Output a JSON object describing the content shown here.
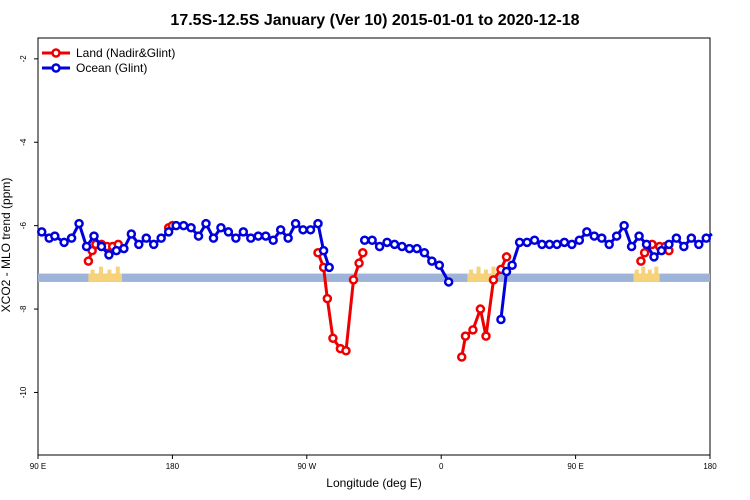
{
  "chart_data": {
    "type": "line",
    "title": "17.5S-12.5S January (Ver 10)   2015-01-01 to 2020-12-18",
    "xlabel": "Longitude (deg E)",
    "ylabel": "XCO2 - MLO trend (ppm)",
    "xlim": [
      90,
      450
    ],
    "ylim": [
      -11.5,
      -1.5
    ],
    "x_ticks": [
      {
        "value": 90,
        "label": "90 E"
      },
      {
        "value": 162,
        "label": "180"
      },
      {
        "value": 234,
        "label": "90 W"
      },
      {
        "value": 306,
        "label": "0"
      },
      {
        "value": 378,
        "label": "90 E"
      },
      {
        "value": 450,
        "label": "180"
      }
    ],
    "y_ticks": [
      {
        "value": -2,
        "label": "-2"
      },
      {
        "value": -4,
        "label": "-4"
      },
      {
        "value": -6,
        "label": "-6"
      },
      {
        "value": -8,
        "label": "-8"
      },
      {
        "value": -10,
        "label": "-10"
      }
    ],
    "grid": false,
    "legend_position": "top-left",
    "band": {
      "y_min": -7.35,
      "y_max": -7.15,
      "color": "#9db3d8",
      "land_color": "#f6d27a"
    },
    "land_band_spans": [
      [
        117,
        135
      ],
      [
        320,
        336
      ],
      [
        409,
        423
      ]
    ],
    "series": [
      {
        "name": "Land (Nadir&Glint)",
        "color": "#ee0000",
        "segments": [
          [
            [
              117,
              -6.85
            ],
            [
              119,
              -6.6
            ],
            [
              121,
              -6.45
            ],
            [
              124,
              -6.45
            ],
            [
              127,
              -6.5
            ],
            [
              130,
              -6.5
            ],
            [
              133,
              -6.45
            ]
          ],
          [
            [
              160,
              -6.05
            ],
            [
              162,
              -6.0
            ]
          ],
          [
            [
              240,
              -6.65
            ],
            [
              243,
              -7.0
            ],
            [
              245,
              -7.75
            ],
            [
              248,
              -8.7
            ],
            [
              252,
              -8.95
            ],
            [
              255,
              -9.0
            ],
            [
              259,
              -7.3
            ],
            [
              262,
              -6.9
            ],
            [
              264,
              -6.65
            ]
          ],
          [
            [
              317,
              -9.15
            ],
            [
              319,
              -8.65
            ],
            [
              323,
              -8.5
            ],
            [
              327,
              -8.0
            ],
            [
              330,
              -8.65
            ],
            [
              334,
              -7.3
            ],
            [
              338,
              -7.05
            ],
            [
              341,
              -6.75
            ]
          ],
          [
            [
              413,
              -6.85
            ],
            [
              415,
              -6.65
            ],
            [
              419,
              -6.45
            ],
            [
              423,
              -6.5
            ],
            [
              426,
              -6.5
            ],
            [
              428,
              -6.6
            ]
          ]
        ]
      },
      {
        "name": "Ocean (Glint)",
        "color": "#0000dd",
        "segments": [
          [
            [
              92,
              -6.15
            ],
            [
              96,
              -6.3
            ],
            [
              99,
              -6.25
            ],
            [
              104,
              -6.4
            ],
            [
              108,
              -6.3
            ],
            [
              112,
              -5.95
            ],
            [
              116,
              -6.5
            ],
            [
              120,
              -6.25
            ],
            [
              124,
              -6.5
            ],
            [
              128,
              -6.7
            ],
            [
              132,
              -6.6
            ],
            [
              136,
              -6.55
            ],
            [
              140,
              -6.2
            ],
            [
              144,
              -6.45
            ],
            [
              148,
              -6.3
            ],
            [
              152,
              -6.45
            ],
            [
              156,
              -6.3
            ],
            [
              160,
              -6.15
            ],
            [
              164,
              -6.0
            ],
            [
              168,
              -6.0
            ],
            [
              172,
              -6.05
            ],
            [
              176,
              -6.25
            ],
            [
              180,
              -5.95
            ],
            [
              184,
              -6.3
            ],
            [
              188,
              -6.05
            ],
            [
              192,
              -6.15
            ],
            [
              196,
              -6.3
            ],
            [
              200,
              -6.15
            ],
            [
              204,
              -6.3
            ],
            [
              208,
              -6.25
            ],
            [
              212,
              -6.25
            ],
            [
              216,
              -6.35
            ],
            [
              220,
              -6.1
            ],
            [
              224,
              -6.3
            ],
            [
              228,
              -5.95
            ],
            [
              232,
              -6.1
            ],
            [
              236,
              -6.1
            ],
            [
              240,
              -5.95
            ],
            [
              243,
              -6.6
            ],
            [
              246,
              -7.0
            ]
          ],
          [
            [
              265,
              -6.35
            ],
            [
              269,
              -6.35
            ],
            [
              273,
              -6.5
            ],
            [
              277,
              -6.4
            ],
            [
              281,
              -6.45
            ],
            [
              285,
              -6.5
            ],
            [
              289,
              -6.55
            ],
            [
              293,
              -6.55
            ],
            [
              297,
              -6.65
            ],
            [
              301,
              -6.85
            ],
            [
              305,
              -6.95
            ],
            [
              310,
              -7.35
            ]
          ],
          [
            [
              338,
              -8.25
            ],
            [
              341,
              -7.1
            ],
            [
              344,
              -6.95
            ],
            [
              348,
              -6.4
            ],
            [
              352,
              -6.4
            ],
            [
              356,
              -6.35
            ],
            [
              360,
              -6.45
            ],
            [
              364,
              -6.45
            ],
            [
              368,
              -6.45
            ],
            [
              372,
              -6.4
            ],
            [
              376,
              -6.45
            ],
            [
              380,
              -6.35
            ],
            [
              384,
              -6.15
            ],
            [
              388,
              -6.25
            ],
            [
              392,
              -6.3
            ],
            [
              396,
              -6.45
            ],
            [
              400,
              -6.25
            ],
            [
              404,
              -6.0
            ],
            [
              408,
              -6.5
            ],
            [
              412,
              -6.25
            ],
            [
              416,
              -6.45
            ],
            [
              420,
              -6.75
            ],
            [
              424,
              -6.6
            ],
            [
              428,
              -6.45
            ],
            [
              432,
              -6.3
            ],
            [
              436,
              -6.5
            ],
            [
              440,
              -6.3
            ],
            [
              444,
              -6.45
            ],
            [
              448,
              -6.3
            ],
            [
              451,
              -6.2
            ]
          ]
        ]
      }
    ]
  }
}
